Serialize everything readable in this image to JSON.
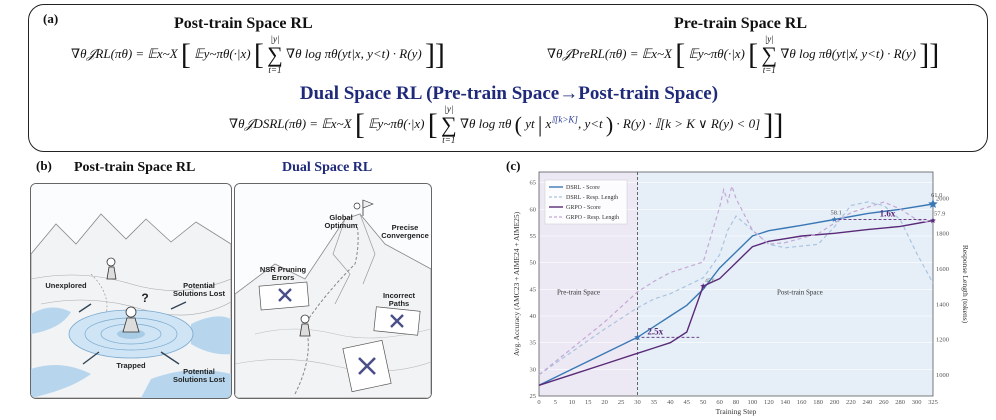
{
  "panel_a": {
    "tag": "(a)",
    "post_title": "Post-train Space RL",
    "pre_title": "Pre-train Space RL",
    "dual_title": "Dual Space RL (Pre-train Space→Post-train Space)",
    "rl_lhs": "∇θ𝒥RL(πθ) = 𝔼x~X",
    "prerl_lhs": "∇θ𝒥PreRL(πθ) = 𝔼x~X",
    "dsrl_lhs": "∇θ𝒥DSRL(πθ) = 𝔼x~X",
    "rl_inner": "𝔼y~πθ(·|x)",
    "prerl_inner": "𝔼y~πθ(·|x)",
    "dsrl_inner": "𝔼y~πθ(·|x)",
    "sum_top": "|y|",
    "sum_bottom": "t=1",
    "rl_term": "∇θ log πθ(yt|x, y<t) · R(y)",
    "prerl_term": "∇θ log πθ(yt|x̸, y<t) · R(y)",
    "dsrl_term_a": "∇θ log πθ",
    "dsrl_term_b": "yt",
    "dsrl_term_c": "x",
    "dsrl_term_sup": "𝕀[k>K]",
    "dsrl_term_d": ", y<t",
    "dsrl_term_e": "· R(y) · 𝕀[k > K ∨ R(y) < 0]"
  },
  "panel_b": {
    "tag": "(b)",
    "left_title": "Post-train Space RL",
    "right_title": "Dual Space RL",
    "labels_left": {
      "unexplored": "Unexplored",
      "lost1": "Potential Solutions Lost",
      "trapped": "Trapped",
      "lost2": "Potential Solutions Lost",
      "question": "?"
    },
    "labels_right": {
      "global": "Global Optimum",
      "precise": "Precise Convergence",
      "nsr": "NSR Pruning Errors",
      "incorrect": "Incorrect Paths"
    }
  },
  "panel_c": {
    "tag": "(c)",
    "region_pre": "Pre-train Space",
    "region_post": "Post-train Space",
    "annot_25": "2.5x",
    "annot_16": "1.6x",
    "point_labels": [
      "58.1",
      "61.0",
      "57.9",
      "45.6"
    ],
    "colors": {
      "dsrl": "#3a78b5",
      "dsrl_len": "#a9c4e0",
      "grpo": "#5a2a78",
      "grpo_len": "#c4a8d6",
      "pre_bg": "#ece8f4",
      "post_bg": "#e6eff8"
    }
  },
  "chart_data": {
    "type": "line",
    "xlabel": "Training Step",
    "ylabel": "Avg. Accuracy (AMC23 + AIME24 + AIME25)",
    "y2label": "Response Length (tokens)",
    "x_ticks": [
      0,
      5,
      10,
      15,
      20,
      25,
      30,
      35,
      40,
      45,
      50,
      60,
      80,
      100,
      120,
      140,
      160,
      180,
      200,
      220,
      240,
      260,
      280,
      300,
      325
    ],
    "y_ticks": [
      25,
      30,
      35,
      40,
      45,
      50,
      55,
      60,
      65
    ],
    "y2_ticks": [
      1000,
      1200,
      1400,
      1600,
      1800,
      2000
    ],
    "ylim": [
      25,
      67
    ],
    "y2lim": [
      880,
      2150
    ],
    "legend": [
      "DSRL - Score",
      "DSRL - Resp. Length",
      "GRPO - Score",
      "GRPO - Resp. Length"
    ],
    "series": [
      {
        "name": "DSRL - Score",
        "x": [
          0,
          10,
          20,
          30,
          35,
          40,
          45,
          50,
          60,
          80,
          100,
          120,
          140,
          160,
          200,
          240,
          280,
          325
        ],
        "values": [
          27,
          30,
          33,
          36,
          38,
          40,
          42,
          45,
          49,
          52,
          55,
          56,
          56.5,
          57,
          58.1,
          59.2,
          60,
          61.0
        ]
      },
      {
        "name": "DSRL - Resp. Length",
        "x": [
          0,
          10,
          20,
          30,
          35,
          40,
          50,
          60,
          70,
          80,
          100,
          120,
          140,
          180,
          200,
          220,
          240,
          260,
          280,
          300,
          325
        ],
        "values": [
          1000,
          1130,
          1260,
          1380,
          1430,
          1460,
          1550,
          1680,
          1820,
          1900,
          1820,
          1740,
          1720,
          1740,
          1840,
          1960,
          1980,
          1960,
          1880,
          1690,
          1520
        ]
      },
      {
        "name": "GRPO - Score",
        "x": [
          0,
          10,
          20,
          30,
          35,
          40,
          45,
          50,
          60,
          80,
          100,
          120,
          140,
          160,
          200,
          240,
          280,
          325
        ],
        "values": [
          27,
          29,
          31,
          33,
          34,
          35,
          37,
          45.6,
          47,
          50,
          53,
          54,
          54.5,
          55,
          55.5,
          56.2,
          56.8,
          57.9
        ]
      },
      {
        "name": "GRPO - Resp. Length",
        "x": [
          0,
          10,
          20,
          30,
          35,
          40,
          50,
          60,
          65,
          70,
          75,
          80,
          100,
          120,
          140,
          180,
          200,
          220,
          240,
          260,
          280,
          300,
          325
        ],
        "values": [
          1000,
          1150,
          1300,
          1470,
          1530,
          1580,
          1640,
          1950,
          2050,
          1980,
          2070,
          2000,
          1820,
          1740,
          1750,
          1800,
          1860,
          1920,
          1950,
          1980,
          1940,
          1880,
          1860
        ]
      }
    ]
  }
}
